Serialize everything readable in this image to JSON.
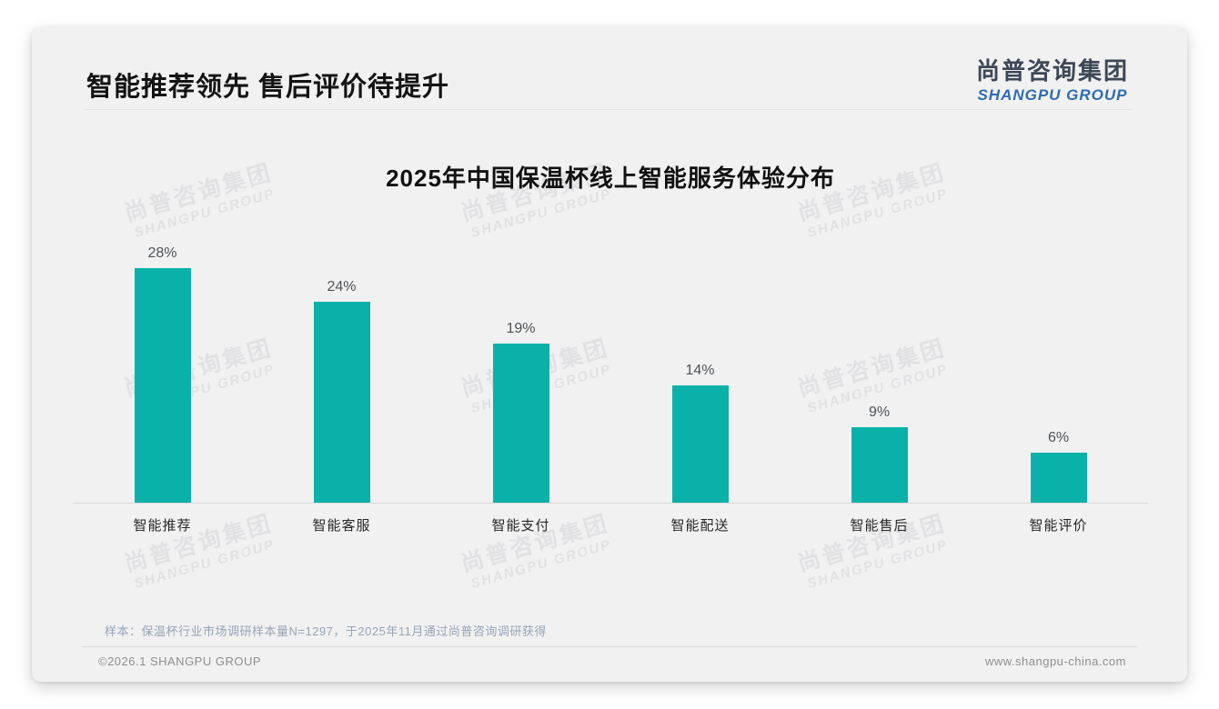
{
  "page": {
    "title": "智能推荐领先 售后评价待提升",
    "logo": {
      "cn": "尚普咨询集团",
      "en": "SHANGPU GROUP"
    },
    "watermark": {
      "line1": "尚普咨询集团",
      "line2": "SHANGPU GROUP"
    },
    "note": "样本：保温杯行业市场调研样本量N=1297，于2025年11月通过尚普咨询调研获得",
    "footer": {
      "left": "©2026.1 SHANGPU GROUP",
      "right": "www.shangpu-china.com"
    },
    "colors": {
      "accent_teal": "#0ab1a8",
      "logo_blue": "#2e6cb0",
      "logo_dark": "#3d4756",
      "note_gray_blue": "#96a4b6"
    }
  },
  "chart_data": {
    "type": "bar",
    "title": "2025年中国保温杯线上智能服务体验分布",
    "categories": [
      "智能推荐",
      "智能客服",
      "智能支付",
      "智能配送",
      "智能售后",
      "智能评价"
    ],
    "values": [
      28,
      24,
      19,
      14,
      9,
      6
    ],
    "value_labels": [
      "28%",
      "24%",
      "19%",
      "14%",
      "9%",
      "6%"
    ],
    "unit": "%",
    "xlabel": "",
    "ylabel": "",
    "ylim": [
      0,
      30
    ],
    "grid": false,
    "legend": "none",
    "bar_color": "#0ab1a8"
  }
}
